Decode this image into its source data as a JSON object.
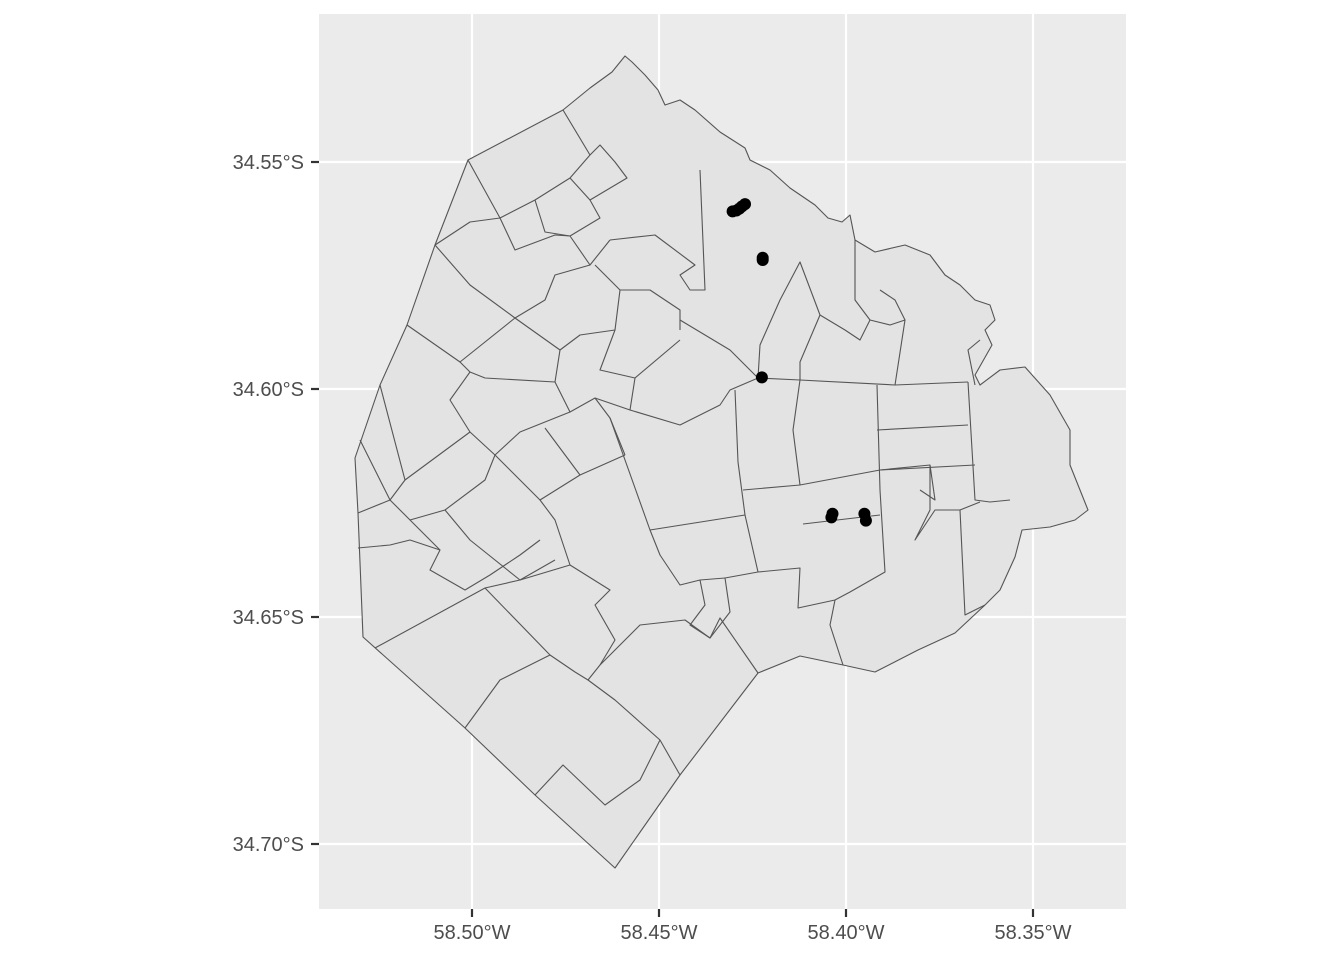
{
  "chart_data": {
    "type": "map",
    "x_axis": {
      "ticks": [
        {
          "value": -58.5,
          "label": "58.50°W"
        },
        {
          "value": -58.45,
          "label": "58.45°W"
        },
        {
          "value": -58.4,
          "label": "58.40°W"
        },
        {
          "value": -58.35,
          "label": "58.35°W"
        }
      ],
      "range": [
        -58.5415,
        -58.3265
      ]
    },
    "y_axis": {
      "ticks": [
        {
          "value": -34.55,
          "label": "34.55°S"
        },
        {
          "value": -34.6,
          "label": "34.60°S"
        },
        {
          "value": -34.65,
          "label": "34.65°S"
        },
        {
          "value": -34.7,
          "label": "34.70°S"
        }
      ],
      "range": [
        -34.7146,
        -34.5178
      ]
    },
    "panel_background": "#ebebeb",
    "region_fill": "#e3e3e3",
    "region_stroke": "#555555",
    "point_color": "#000000",
    "grid": true,
    "points": [
      {
        "lon": -58.4313,
        "lat": -34.5612
      },
      {
        "lon": -58.4303,
        "lat": -34.561
      },
      {
        "lon": -58.4295,
        "lat": -34.5606
      },
      {
        "lon": -58.4288,
        "lat": -34.5601
      },
      {
        "lon": -58.428,
        "lat": -34.5596
      },
      {
        "lon": -58.4233,
        "lat": -34.5719
      },
      {
        "lon": -58.4233,
        "lat": -34.5714
      },
      {
        "lon": -58.4235,
        "lat": -34.5977
      },
      {
        "lon": -58.405,
        "lat": -34.6285
      },
      {
        "lon": -58.4047,
        "lat": -34.6277
      },
      {
        "lon": -58.3962,
        "lat": -34.6277
      },
      {
        "lon": -58.3958,
        "lat": -34.6292
      }
    ]
  }
}
